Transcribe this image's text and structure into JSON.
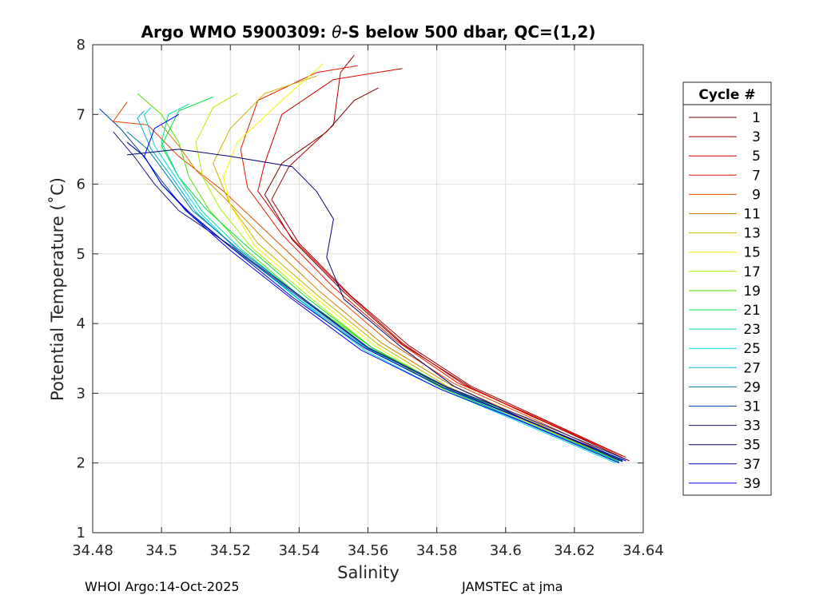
{
  "chart_data": {
    "type": "line",
    "title_prefix": "Argo WMO 5900309: ",
    "title_symbol": "θ",
    "title_suffix": "-S below 500 dbar,  QC=(1,2)",
    "xlabel": "Salinity",
    "ylabel": "Potential Temperature (˚C)",
    "xlim": [
      34.48,
      34.64
    ],
    "ylim": [
      1,
      8
    ],
    "xticks": [
      "34.48",
      "34.5",
      "34.52",
      "34.54",
      "34.56",
      "34.58",
      "34.6",
      "34.62",
      "34.64"
    ],
    "yticks": [
      "1",
      "2",
      "3",
      "4",
      "5",
      "6",
      "7",
      "8"
    ],
    "grid": true,
    "legend_title": "Cycle #",
    "legend_position": "right",
    "legend": [
      {
        "label": "1",
        "color": "#7f0000"
      },
      {
        "label": "3",
        "color": "#a50000"
      },
      {
        "label": "5",
        "color": "#d40000"
      },
      {
        "label": "7",
        "color": "#e61a00"
      },
      {
        "label": "9",
        "color": "#e24a00"
      },
      {
        "label": "11",
        "color": "#d28300"
      },
      {
        "label": "13",
        "color": "#c8b400"
      },
      {
        "label": "15",
        "color": "#f4f400"
      },
      {
        "label": "17",
        "color": "#a8f000"
      },
      {
        "label": "19",
        "color": "#55e000"
      },
      {
        "label": "21",
        "color": "#00e03c"
      },
      {
        "label": "23",
        "color": "#00dca0"
      },
      {
        "label": "25",
        "color": "#00d8e8"
      },
      {
        "label": "27",
        "color": "#00b0e0"
      },
      {
        "label": "29",
        "color": "#007a9a"
      },
      {
        "label": "31",
        "color": "#0046a0"
      },
      {
        "label": "33",
        "color": "#1a1a78"
      },
      {
        "label": "35",
        "color": "#000070"
      },
      {
        "label": "37",
        "color": "#0000b8"
      },
      {
        "label": "39",
        "color": "#0000f0"
      }
    ],
    "series": [
      {
        "name": "1",
        "color": "#7f0000",
        "points": [
          [
            34.636,
            2.03
          ],
          [
            34.61,
            2.62
          ],
          [
            34.59,
            3.08
          ],
          [
            34.57,
            3.7
          ],
          [
            34.553,
            4.45
          ],
          [
            34.538,
            5.2
          ],
          [
            34.53,
            5.85
          ],
          [
            34.535,
            6.3
          ],
          [
            34.548,
            6.75
          ],
          [
            34.556,
            7.2
          ],
          [
            34.563,
            7.38
          ]
        ]
      },
      {
        "name": "3",
        "color": "#a50000",
        "points": [
          [
            34.635,
            2.08
          ],
          [
            34.61,
            2.65
          ],
          [
            34.59,
            3.1
          ],
          [
            34.572,
            3.68
          ],
          [
            34.555,
            4.4
          ],
          [
            34.54,
            5.15
          ],
          [
            34.532,
            5.78
          ],
          [
            34.537,
            6.25
          ],
          [
            34.55,
            6.85
          ],
          [
            34.552,
            7.6
          ],
          [
            34.556,
            7.85
          ]
        ]
      },
      {
        "name": "5",
        "color": "#d40000",
        "points": [
          [
            34.634,
            2.1
          ],
          [
            34.608,
            2.66
          ],
          [
            34.588,
            3.12
          ],
          [
            34.57,
            3.72
          ],
          [
            34.553,
            4.48
          ],
          [
            34.538,
            5.22
          ],
          [
            34.528,
            5.9
          ],
          [
            34.53,
            6.3
          ],
          [
            34.535,
            7.0
          ],
          [
            34.55,
            7.5
          ],
          [
            34.57,
            7.66
          ]
        ]
      },
      {
        "name": "7",
        "color": "#e61a00",
        "points": [
          [
            34.633,
            2.12
          ],
          [
            34.607,
            2.7
          ],
          [
            34.586,
            3.15
          ],
          [
            34.568,
            3.76
          ],
          [
            34.55,
            4.52
          ],
          [
            34.535,
            5.28
          ],
          [
            34.525,
            5.95
          ],
          [
            34.523,
            6.5
          ],
          [
            34.528,
            7.2
          ],
          [
            34.545,
            7.6
          ],
          [
            34.557,
            7.7
          ]
        ]
      },
      {
        "name": "9",
        "color": "#e24a00",
        "points": [
          [
            34.632,
            2.08
          ],
          [
            34.606,
            2.68
          ],
          [
            34.585,
            3.14
          ],
          [
            34.566,
            3.74
          ],
          [
            34.548,
            4.5
          ],
          [
            34.532,
            5.25
          ],
          [
            34.518,
            5.9
          ],
          [
            34.505,
            6.4
          ],
          [
            34.496,
            6.85
          ],
          [
            34.486,
            6.9
          ],
          [
            34.49,
            7.18
          ]
        ]
      },
      {
        "name": "11",
        "color": "#d28300",
        "points": [
          [
            34.632,
            2.06
          ],
          [
            34.605,
            2.66
          ],
          [
            34.584,
            3.12
          ],
          [
            34.564,
            3.72
          ],
          [
            34.546,
            4.46
          ],
          [
            34.53,
            5.2
          ],
          [
            34.518,
            5.82
          ],
          [
            34.51,
            6.2
          ],
          [
            34.505,
            6.55
          ],
          [
            34.5,
            6.85
          ]
        ]
      },
      {
        "name": "13",
        "color": "#c8b400",
        "points": [
          [
            34.632,
            2.05
          ],
          [
            34.604,
            2.65
          ],
          [
            34.583,
            3.1
          ],
          [
            34.563,
            3.7
          ],
          [
            34.545,
            4.42
          ],
          [
            34.528,
            5.15
          ],
          [
            34.52,
            5.7
          ],
          [
            34.515,
            6.3
          ],
          [
            34.52,
            6.8
          ],
          [
            34.53,
            7.3
          ],
          [
            34.545,
            7.55
          ]
        ]
      },
      {
        "name": "15",
        "color": "#f4f400",
        "points": [
          [
            34.632,
            2.03
          ],
          [
            34.604,
            2.64
          ],
          [
            34.582,
            3.09
          ],
          [
            34.562,
            3.68
          ],
          [
            34.544,
            4.4
          ],
          [
            34.527,
            5.12
          ],
          [
            34.52,
            5.7
          ],
          [
            34.518,
            6.1
          ],
          [
            34.522,
            6.6
          ],
          [
            34.535,
            7.2
          ],
          [
            34.547,
            7.73
          ]
        ]
      },
      {
        "name": "17",
        "color": "#a8f000",
        "points": [
          [
            34.632,
            2.02
          ],
          [
            34.603,
            2.63
          ],
          [
            34.581,
            3.08
          ],
          [
            34.561,
            3.66
          ],
          [
            34.543,
            4.38
          ],
          [
            34.526,
            5.1
          ],
          [
            34.517,
            5.65
          ],
          [
            34.512,
            6.1
          ],
          [
            34.51,
            6.6
          ],
          [
            34.515,
            7.1
          ],
          [
            34.522,
            7.3
          ]
        ]
      },
      {
        "name": "19",
        "color": "#55e000",
        "points": [
          [
            34.633,
            2.03
          ],
          [
            34.604,
            2.62
          ],
          [
            34.582,
            3.08
          ],
          [
            34.561,
            3.66
          ],
          [
            34.541,
            4.36
          ],
          [
            34.524,
            5.08
          ],
          [
            34.514,
            5.62
          ],
          [
            34.508,
            6.1
          ],
          [
            34.505,
            6.6
          ],
          [
            34.5,
            7.0
          ],
          [
            34.493,
            7.3
          ]
        ]
      },
      {
        "name": "21",
        "color": "#00e03c",
        "points": [
          [
            34.634,
            2.04
          ],
          [
            34.605,
            2.64
          ],
          [
            34.583,
            3.09
          ],
          [
            34.561,
            3.66
          ],
          [
            34.542,
            4.38
          ],
          [
            34.525,
            5.1
          ],
          [
            34.513,
            5.64
          ],
          [
            34.505,
            6.1
          ],
          [
            34.5,
            6.55
          ],
          [
            34.505,
            7.05
          ],
          [
            34.515,
            7.25
          ]
        ]
      },
      {
        "name": "23",
        "color": "#00dca0",
        "points": [
          [
            34.633,
            2.01
          ],
          [
            34.604,
            2.62
          ],
          [
            34.582,
            3.07
          ],
          [
            34.56,
            3.64
          ],
          [
            34.541,
            4.36
          ],
          [
            34.523,
            5.07
          ],
          [
            34.512,
            5.6
          ],
          [
            34.505,
            6.1
          ],
          [
            34.5,
            6.6
          ],
          [
            34.502,
            7.0
          ],
          [
            34.508,
            7.15
          ]
        ]
      },
      {
        "name": "25",
        "color": "#00d8e8",
        "points": [
          [
            34.632,
            2.0
          ],
          [
            34.603,
            2.61
          ],
          [
            34.581,
            3.06
          ],
          [
            34.559,
            3.62
          ],
          [
            34.54,
            4.34
          ],
          [
            34.522,
            5.05
          ],
          [
            34.511,
            5.6
          ],
          [
            34.504,
            6.1
          ],
          [
            34.498,
            6.55
          ],
          [
            34.495,
            7.0
          ],
          [
            34.497,
            7.1
          ]
        ]
      },
      {
        "name": "27",
        "color": "#00b0e0",
        "points": [
          [
            34.633,
            2.02
          ],
          [
            34.604,
            2.62
          ],
          [
            34.582,
            3.07
          ],
          [
            34.56,
            3.63
          ],
          [
            34.54,
            4.35
          ],
          [
            34.522,
            5.06
          ],
          [
            34.51,
            5.6
          ],
          [
            34.503,
            6.1
          ],
          [
            34.497,
            6.5
          ],
          [
            34.493,
            6.95
          ],
          [
            34.495,
            7.05
          ]
        ]
      },
      {
        "name": "29",
        "color": "#007a9a",
        "points": [
          [
            34.634,
            2.04
          ],
          [
            34.605,
            2.64
          ],
          [
            34.583,
            3.08
          ],
          [
            34.56,
            3.65
          ],
          [
            34.541,
            4.37
          ],
          [
            34.522,
            5.08
          ],
          [
            34.509,
            5.62
          ],
          [
            34.502,
            6.1
          ],
          [
            34.496,
            6.5
          ],
          [
            34.49,
            6.75
          ]
        ]
      },
      {
        "name": "31",
        "color": "#0046a0",
        "points": [
          [
            34.634,
            2.03
          ],
          [
            34.605,
            2.63
          ],
          [
            34.583,
            3.08
          ],
          [
            34.56,
            3.65
          ],
          [
            34.54,
            4.38
          ],
          [
            34.52,
            5.1
          ],
          [
            34.507,
            5.62
          ],
          [
            34.5,
            6.05
          ],
          [
            34.494,
            6.45
          ],
          [
            34.488,
            6.8
          ],
          [
            34.482,
            7.08
          ]
        ]
      },
      {
        "name": "33",
        "color": "#1a1a78",
        "points": [
          [
            34.635,
            2.05
          ],
          [
            34.606,
            2.65
          ],
          [
            34.583,
            3.09
          ],
          [
            34.56,
            3.66
          ],
          [
            34.54,
            4.4
          ],
          [
            34.52,
            5.12
          ],
          [
            34.505,
            5.62
          ],
          [
            34.498,
            6.0
          ],
          [
            34.492,
            6.4
          ],
          [
            34.486,
            6.75
          ]
        ]
      },
      {
        "name": "35",
        "color": "#000070",
        "points": [
          [
            34.634,
            2.02
          ],
          [
            34.605,
            2.64
          ],
          [
            34.585,
            3.1
          ],
          [
            34.57,
            3.65
          ],
          [
            34.553,
            4.35
          ],
          [
            34.548,
            4.95
          ],
          [
            34.55,
            5.5
          ],
          [
            34.545,
            5.9
          ],
          [
            34.538,
            6.25
          ],
          [
            34.52,
            6.4
          ],
          [
            34.505,
            6.5
          ],
          [
            34.49,
            6.42
          ]
        ]
      },
      {
        "name": "37",
        "color": "#0000b8",
        "points": [
          [
            34.635,
            2.03
          ],
          [
            34.605,
            2.63
          ],
          [
            34.582,
            3.08
          ],
          [
            34.559,
            3.65
          ],
          [
            34.538,
            4.38
          ],
          [
            34.52,
            5.1
          ],
          [
            34.508,
            5.6
          ],
          [
            34.5,
            6.0
          ],
          [
            34.495,
            6.4
          ],
          [
            34.49,
            6.6
          ]
        ]
      },
      {
        "name": "39",
        "color": "#0000f0",
        "points": [
          [
            34.633,
            2.0
          ],
          [
            34.604,
            2.61
          ],
          [
            34.581,
            3.06
          ],
          [
            34.558,
            3.62
          ],
          [
            34.538,
            4.35
          ],
          [
            34.52,
            5.05
          ],
          [
            34.508,
            5.58
          ],
          [
            34.5,
            6.0
          ],
          [
            34.495,
            6.4
          ],
          [
            34.498,
            6.8
          ],
          [
            34.505,
            7.0
          ]
        ]
      }
    ]
  },
  "footer": {
    "left": "WHOI Argo:14-Oct-2025",
    "right": "JAMSTEC at jma"
  }
}
